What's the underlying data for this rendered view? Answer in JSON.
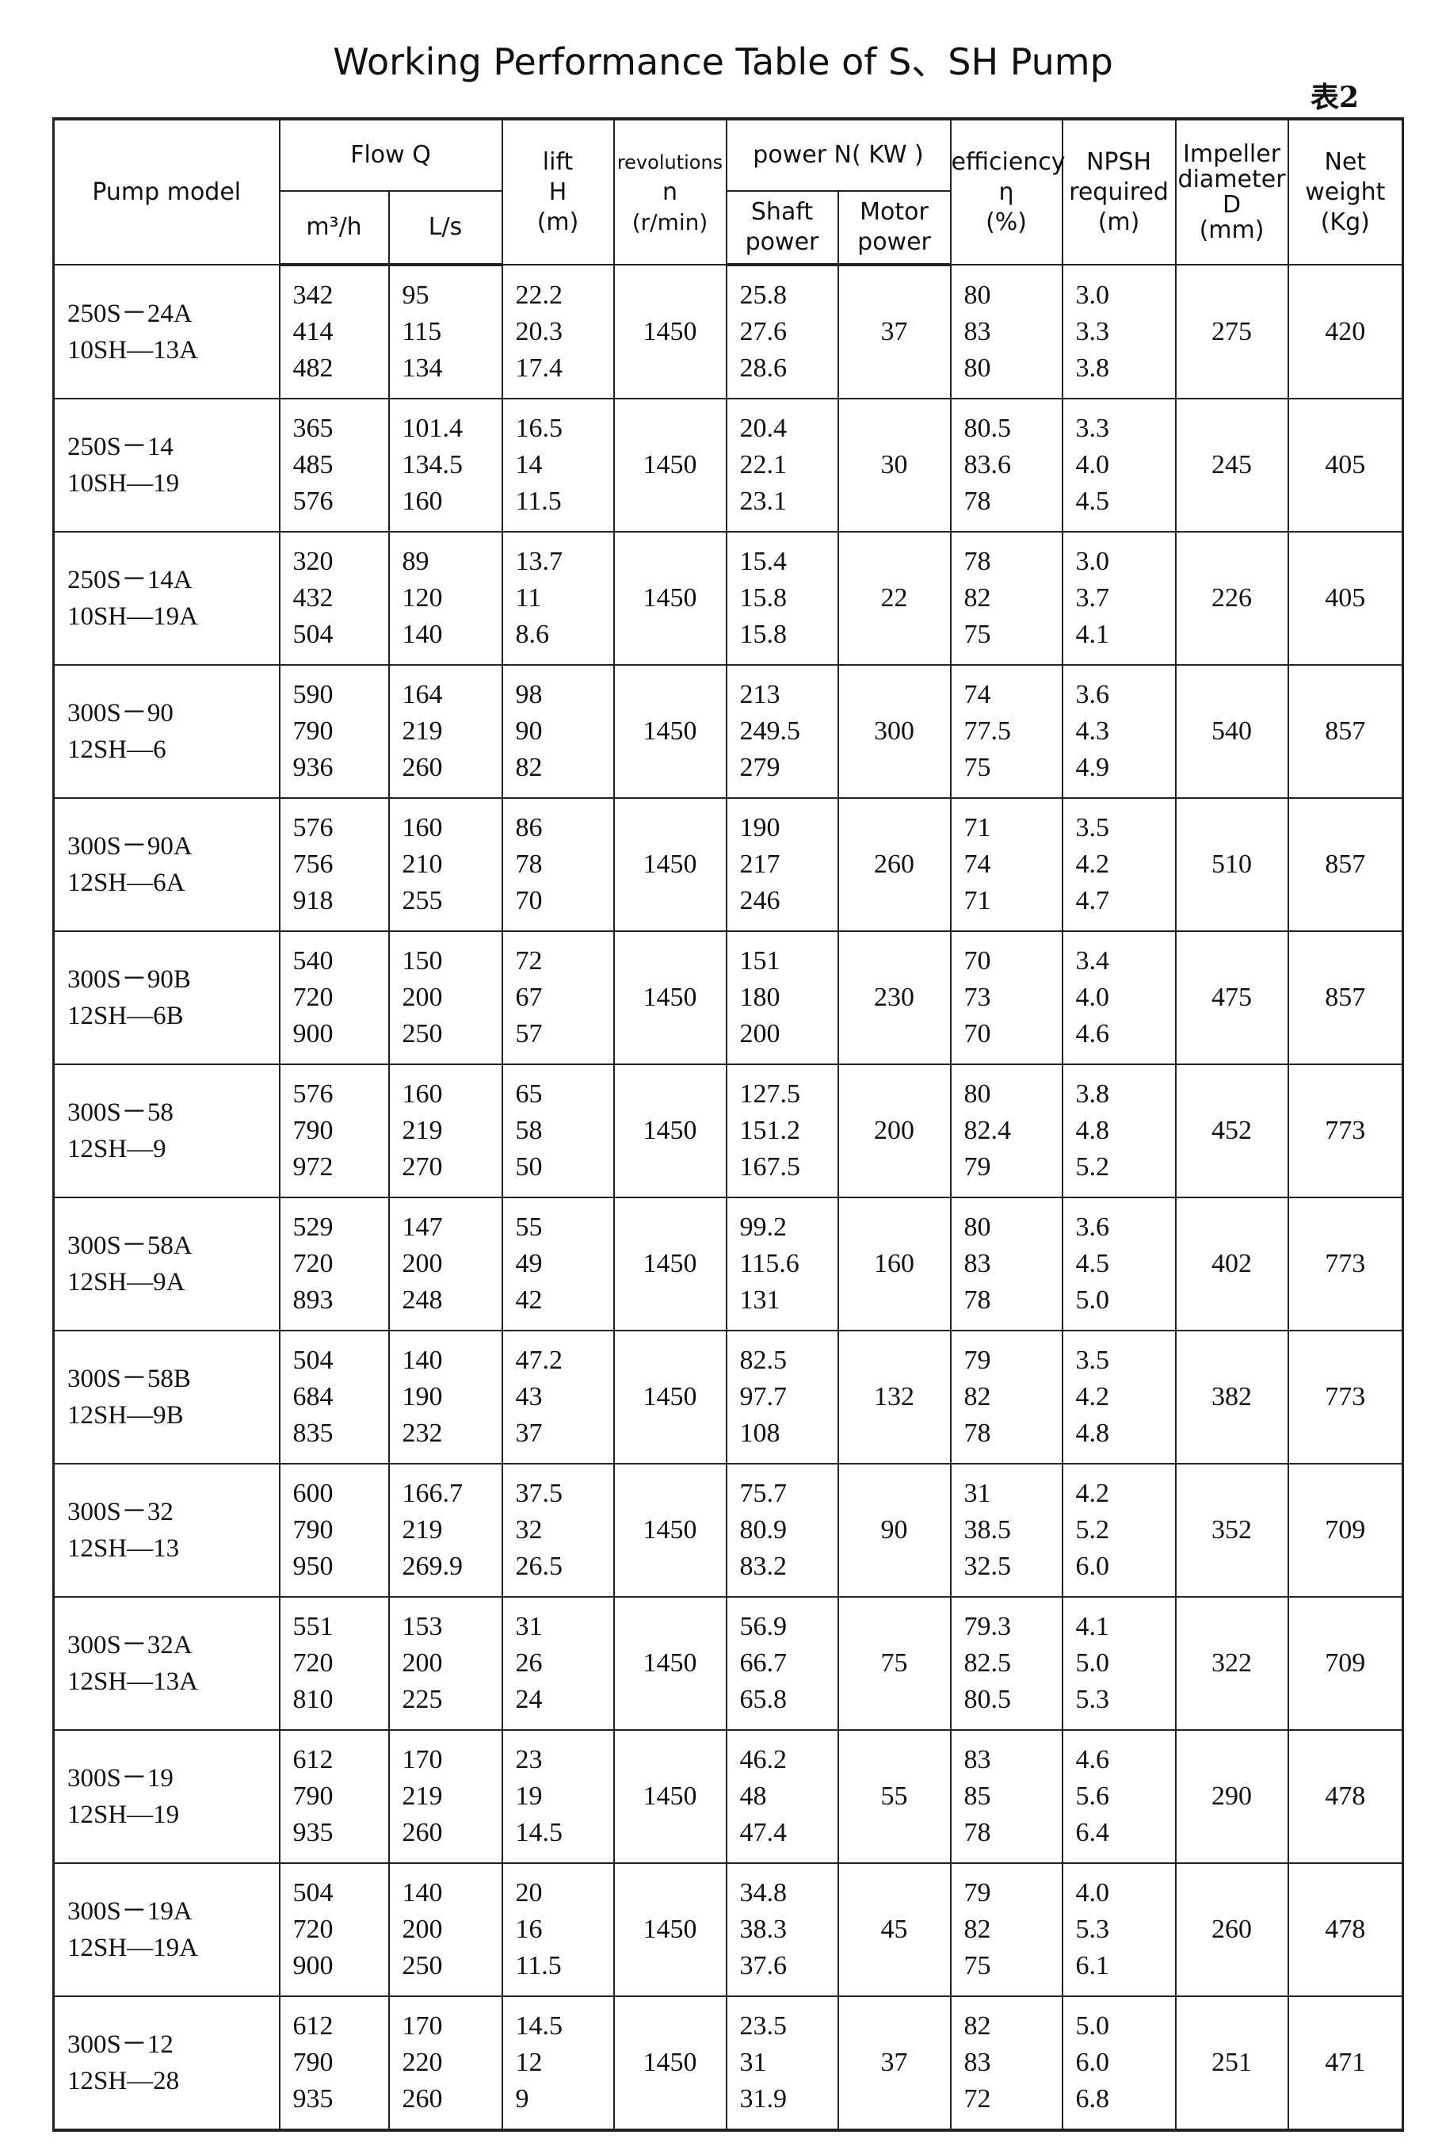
{
  "title": "Working Performance Table of S、SH Pump",
  "table_tag": "表2",
  "headers": {
    "pump_model": "Pump model",
    "flow": "Flow Q",
    "flow_m3h": "m³/h",
    "flow_ls": "L/s",
    "lift": [
      "lift",
      "H",
      "(m)"
    ],
    "revolutions": [
      "revolutions",
      "n",
      "(r/min)"
    ],
    "power": "power N( KW )",
    "shaft_power": [
      "Shaft",
      "power"
    ],
    "motor_power": [
      "Motor",
      "power"
    ],
    "efficiency": [
      "efficiency",
      "η",
      "(%)"
    ],
    "npsh": [
      "NPSH",
      "required",
      "(m)"
    ],
    "impeller": [
      "Impeller",
      "diameter",
      "D",
      "(mm)"
    ],
    "weight": [
      "Net",
      "weight",
      "(Kg)"
    ]
  },
  "rows": [
    {
      "model": [
        "250S－24A",
        "10SH—13A"
      ],
      "m3h": [
        "342",
        "414",
        "482"
      ],
      "ls": [
        "95",
        "115",
        "134"
      ],
      "lift": [
        "22.2",
        "20.3",
        "17.4"
      ],
      "rpm": "1450",
      "shaft": [
        "25.8",
        "27.6",
        "28.6"
      ],
      "motor": "37",
      "eff": [
        "80",
        "83",
        "80"
      ],
      "npsh": [
        "3.0",
        "3.3",
        "3.8"
      ],
      "impeller": "275",
      "weight": "420"
    },
    {
      "model": [
        "250S－14",
        "10SH—19"
      ],
      "m3h": [
        "365",
        "485",
        "576"
      ],
      "ls": [
        "101.4",
        "134.5",
        "160"
      ],
      "lift": [
        "16.5",
        "14",
        "11.5"
      ],
      "rpm": "1450",
      "shaft": [
        "20.4",
        "22.1",
        "23.1"
      ],
      "motor": "30",
      "eff": [
        "80.5",
        "83.6",
        "78"
      ],
      "npsh": [
        "3.3",
        "4.0",
        "4.5"
      ],
      "impeller": "245",
      "weight": "405"
    },
    {
      "model": [
        "250S－14A",
        "10SH—19A"
      ],
      "m3h": [
        "320",
        "432",
        "504"
      ],
      "ls": [
        "89",
        "120",
        "140"
      ],
      "lift": [
        "13.7",
        "11",
        "8.6"
      ],
      "rpm": "1450",
      "shaft": [
        "15.4",
        "15.8",
        "15.8"
      ],
      "motor": "22",
      "eff": [
        "78",
        "82",
        "75"
      ],
      "npsh": [
        "3.0",
        "3.7",
        "4.1"
      ],
      "impeller": "226",
      "weight": "405"
    },
    {
      "model": [
        "300S－90",
        "12SH—6"
      ],
      "m3h": [
        "590",
        "790",
        "936"
      ],
      "ls": [
        "164",
        "219",
        "260"
      ],
      "lift": [
        "98",
        "90",
        "82"
      ],
      "rpm": "1450",
      "shaft": [
        "213",
        "249.5",
        "279"
      ],
      "motor": "300",
      "eff": [
        "74",
        "77.5",
        "75"
      ],
      "npsh": [
        "3.6",
        "4.3",
        "4.9"
      ],
      "impeller": "540",
      "weight": "857"
    },
    {
      "model": [
        "300S－90A",
        "12SH—6A"
      ],
      "m3h": [
        "576",
        "756",
        "918"
      ],
      "ls": [
        "160",
        "210",
        "255"
      ],
      "lift": [
        "86",
        "78",
        "70"
      ],
      "rpm": "1450",
      "shaft": [
        "190",
        "217",
        "246"
      ],
      "motor": "260",
      "eff": [
        "71",
        "74",
        "71"
      ],
      "npsh": [
        "3.5",
        "4.2",
        "4.7"
      ],
      "impeller": "510",
      "weight": "857"
    },
    {
      "model": [
        "300S－90B",
        "12SH—6B"
      ],
      "m3h": [
        "540",
        "720",
        "900"
      ],
      "ls": [
        "150",
        "200",
        "250"
      ],
      "lift": [
        "72",
        "67",
        "57"
      ],
      "rpm": "1450",
      "shaft": [
        "151",
        "180",
        "200"
      ],
      "motor": "230",
      "eff": [
        "70",
        "73",
        "70"
      ],
      "npsh": [
        "3.4",
        "4.0",
        "4.6"
      ],
      "impeller": "475",
      "weight": "857"
    },
    {
      "model": [
        "300S－58",
        "12SH—9"
      ],
      "m3h": [
        "576",
        "790",
        "972"
      ],
      "ls": [
        "160",
        "219",
        "270"
      ],
      "lift": [
        "65",
        "58",
        "50"
      ],
      "rpm": "1450",
      "shaft": [
        "127.5",
        "151.2",
        "167.5"
      ],
      "motor": "200",
      "eff": [
        "80",
        "82.4",
        "79"
      ],
      "npsh": [
        "3.8",
        "4.8",
        "5.2"
      ],
      "impeller": "452",
      "weight": "773"
    },
    {
      "model": [
        "300S－58A",
        "12SH—9A"
      ],
      "m3h": [
        "529",
        "720",
        "893"
      ],
      "ls": [
        "147",
        "200",
        "248"
      ],
      "lift": [
        "55",
        "49",
        "42"
      ],
      "rpm": "1450",
      "shaft": [
        "99.2",
        "115.6",
        "131"
      ],
      "motor": "160",
      "eff": [
        "80",
        "83",
        "78"
      ],
      "npsh": [
        "3.6",
        "4.5",
        "5.0"
      ],
      "impeller": "402",
      "weight": "773"
    },
    {
      "model": [
        "300S－58B",
        "12SH—9B"
      ],
      "m3h": [
        "504",
        "684",
        "835"
      ],
      "ls": [
        "140",
        "190",
        "232"
      ],
      "lift": [
        "47.2",
        "43",
        "37"
      ],
      "rpm": "1450",
      "shaft": [
        "82.5",
        "97.7",
        "108"
      ],
      "motor": "132",
      "eff": [
        "79",
        "82",
        "78"
      ],
      "npsh": [
        "3.5",
        "4.2",
        "4.8"
      ],
      "impeller": "382",
      "weight": "773"
    },
    {
      "model": [
        "300S－32",
        "12SH—13"
      ],
      "m3h": [
        "600",
        "790",
        "950"
      ],
      "ls": [
        "166.7",
        "219",
        "269.9"
      ],
      "lift": [
        "37.5",
        "32",
        "26.5"
      ],
      "rpm": "1450",
      "shaft": [
        "75.7",
        "80.9",
        "83.2"
      ],
      "motor": "90",
      "eff": [
        "31",
        "38.5",
        "32.5"
      ],
      "npsh": [
        "4.2",
        "5.2",
        "6.0"
      ],
      "impeller": "352",
      "weight": "709"
    },
    {
      "model": [
        "300S－32A",
        "12SH—13A"
      ],
      "m3h": [
        "551",
        "720",
        "810"
      ],
      "ls": [
        "153",
        "200",
        "225"
      ],
      "lift": [
        "31",
        "26",
        "24"
      ],
      "rpm": "1450",
      "shaft": [
        "56.9",
        "66.7",
        "65.8"
      ],
      "motor": "75",
      "eff": [
        "79.3",
        "82.5",
        "80.5"
      ],
      "npsh": [
        "4.1",
        "5.0",
        "5.3"
      ],
      "impeller": "322",
      "weight": "709"
    },
    {
      "model": [
        "300S－19",
        "12SH—19"
      ],
      "m3h": [
        "612",
        "790",
        "935"
      ],
      "ls": [
        "170",
        "219",
        "260"
      ],
      "lift": [
        "23",
        "19",
        "14.5"
      ],
      "rpm": "1450",
      "shaft": [
        "46.2",
        "48",
        "47.4"
      ],
      "motor": "55",
      "eff": [
        "83",
        "85",
        "78"
      ],
      "npsh": [
        "4.6",
        "5.6",
        "6.4"
      ],
      "impeller": "290",
      "weight": "478"
    },
    {
      "model": [
        "300S－19A",
        "12SH—19A"
      ],
      "m3h": [
        "504",
        "720",
        "900"
      ],
      "ls": [
        "140",
        "200",
        "250"
      ],
      "lift": [
        "20",
        "16",
        "11.5"
      ],
      "rpm": "1450",
      "shaft": [
        "34.8",
        "38.3",
        "37.6"
      ],
      "motor": "45",
      "eff": [
        "79",
        "82",
        "75"
      ],
      "npsh": [
        "4.0",
        "5.3",
        "6.1"
      ],
      "impeller": "260",
      "weight": "478"
    },
    {
      "model": [
        "300S－12",
        "12SH—28"
      ],
      "m3h": [
        "612",
        "790",
        "935"
      ],
      "ls": [
        "170",
        "220",
        "260"
      ],
      "lift": [
        "14.5",
        "12",
        "9"
      ],
      "rpm": "1450",
      "shaft": [
        "23.5",
        "31",
        "31.9"
      ],
      "motor": "37",
      "eff": [
        "82",
        "83",
        "72"
      ],
      "npsh": [
        "5.0",
        "6.0",
        "6.8"
      ],
      "impeller": "251",
      "weight": "471"
    }
  ]
}
